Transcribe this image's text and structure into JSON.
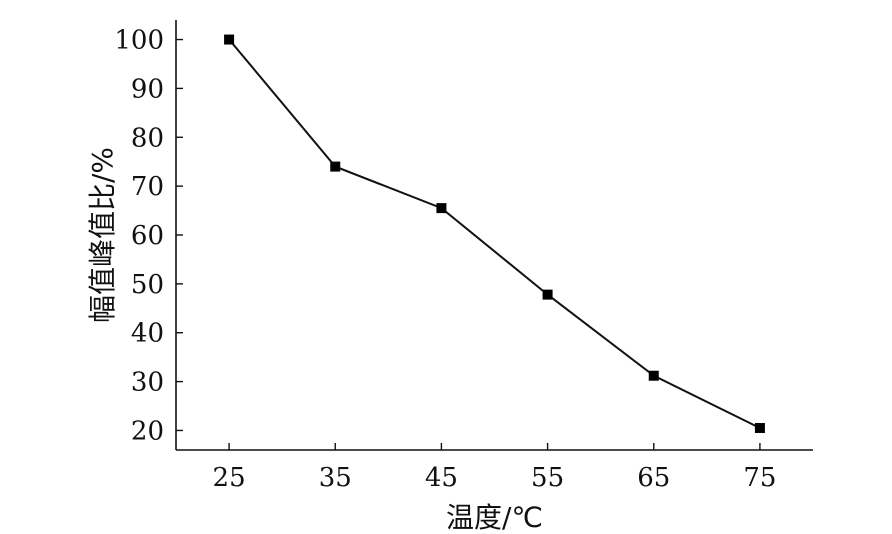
{
  "chart_data": {
    "type": "line",
    "title": "",
    "xlabel": "温度/℃",
    "ylabel": "幅值峰值比/%",
    "x": [
      25,
      35,
      45,
      55,
      65,
      75
    ],
    "series": [
      {
        "values": [
          100,
          74,
          65.5,
          47.8,
          31.2,
          20.5
        ]
      }
    ],
    "xticks": [
      "25",
      "35",
      "45",
      "55",
      "65",
      "75"
    ],
    "yticks": [
      "20",
      "30",
      "40",
      "50",
      "60",
      "70",
      "80",
      "90",
      "100"
    ],
    "xlim": [
      20,
      80
    ],
    "ylim": [
      16,
      104
    ],
    "grid": false,
    "legend": "none",
    "colors": {
      "line": "#111111",
      "marker": "#000000",
      "axis": "#111111"
    }
  }
}
